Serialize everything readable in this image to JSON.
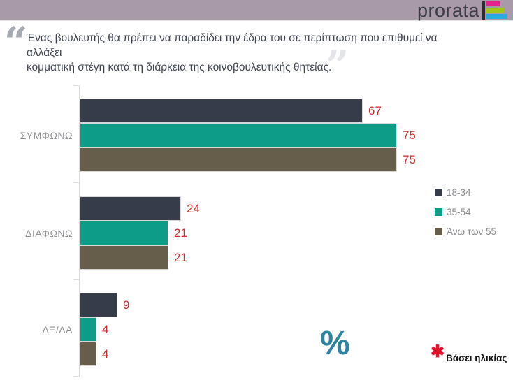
{
  "header": {
    "logo_text": "prorata",
    "bg_color": "#a89aa7",
    "logo_bar_colors": [
      "#e6218e",
      "#a2c617",
      "#29abe2"
    ]
  },
  "quote": {
    "open_mark": "“",
    "close_mark": "”",
    "lines": [
      "Ένας βουλευτής θα πρέπει να παραδίδει την έδρα του σε περίπτωση που επιθυμεί να αλλάξει",
      "κομματική στέγη κατά τη διάρκεια της κοινοβουλευτικής θητείας."
    ]
  },
  "chart_data": {
    "type": "bar",
    "orientation": "horizontal",
    "title": "",
    "categories": [
      "ΣΥΜΦΩΝΩ",
      "ΔΙΑΦΩΝΩ",
      "ΔΞ/ΔΑ"
    ],
    "series": [
      {
        "name": "18-34",
        "color": "#373c4b",
        "values": [
          67,
          24,
          9
        ]
      },
      {
        "name": "35-54",
        "color": "#0d9d87",
        "values": [
          75,
          21,
          4
        ]
      },
      {
        "name": "Άνω των 55",
        "color": "#665e4b",
        "values": [
          75,
          21,
          4
        ]
      }
    ],
    "xlim": [
      0,
      100
    ],
    "grid": false,
    "legend_position": "right",
    "value_label_color": "#d12b2e",
    "unit": "%",
    "unit_color": "#2c83a2"
  },
  "footnote": {
    "marker": "✱",
    "marker_color": "#e8112d",
    "text": "Βάσει ηλικίας"
  }
}
